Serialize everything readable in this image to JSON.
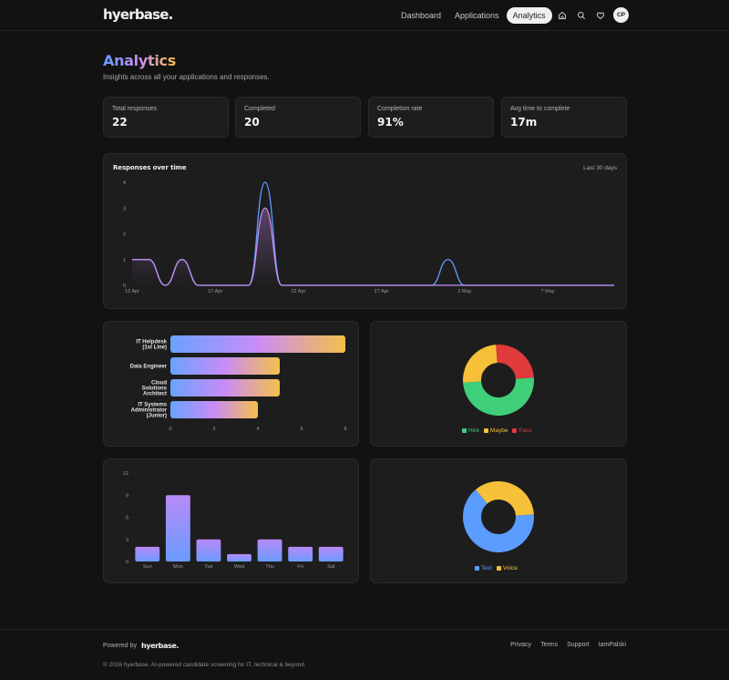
{
  "brand": {
    "logo": "hyerbase."
  },
  "nav": {
    "links": [
      "Dashboard",
      "Applications",
      "Analytics"
    ],
    "active": "Analytics",
    "icons": [
      "home-icon",
      "search-icon",
      "heart-icon"
    ],
    "avatar_initials": "CP"
  },
  "header": {
    "title": "Analytics",
    "subtitle": "Insights across all your applications and responses."
  },
  "stats": [
    {
      "label": "Total responses",
      "value": "22"
    },
    {
      "label": "Completed",
      "value": "20"
    },
    {
      "label": "Completion rate",
      "value": "91%"
    },
    {
      "label": "Avg time to complete",
      "value": "17m"
    }
  ],
  "colors": {
    "accent_blue": "#5f9dff",
    "accent_purple": "#c98cf7",
    "accent_yellow": "#f5c04a",
    "hire": "#3fcf7a",
    "maybe": "#f6c038",
    "pass": "#e03a3a",
    "text": "#5b9cff",
    "voice": "#f6c038"
  },
  "chart_data": [
    {
      "type": "line",
      "title": "Responses over time",
      "range_label": "Last 30 days",
      "x_tick_labels": [
        "12 Apr",
        "17 Apr",
        "22 Apr",
        "27 Apr",
        "2 May",
        "7 May"
      ],
      "x": [
        "12 Apr",
        "13 Apr",
        "14 Apr",
        "15 Apr",
        "16 Apr",
        "17 Apr",
        "18 Apr",
        "19 Apr",
        "20 Apr",
        "21 Apr",
        "22 Apr",
        "23 Apr",
        "24 Apr",
        "25 Apr",
        "26 Apr",
        "27 Apr",
        "28 Apr",
        "29 Apr",
        "30 Apr",
        "1 May",
        "2 May",
        "3 May",
        "4 May",
        "5 May",
        "6 May",
        "7 May",
        "8 May",
        "9 May",
        "10 May",
        "11 May"
      ],
      "ylim": [
        0,
        4
      ],
      "y_ticks": [
        0,
        1,
        2,
        3,
        4
      ],
      "series": [
        {
          "color": "#5f9dff",
          "values": [
            1,
            1,
            0,
            1,
            0,
            0,
            0,
            0,
            4,
            0,
            0,
            0,
            0,
            0,
            0,
            0,
            0,
            0,
            0,
            1,
            0,
            0,
            0,
            0,
            0,
            0,
            0,
            0,
            0,
            0
          ]
        },
        {
          "color": "#c98cf7",
          "values": [
            1,
            1,
            0,
            1,
            0,
            0,
            0,
            0,
            3,
            0,
            0,
            0,
            0,
            0,
            0,
            0,
            0,
            0,
            0,
            0,
            0,
            0,
            0,
            0,
            0,
            0,
            0,
            0,
            0,
            0
          ]
        }
      ],
      "grid": true
    },
    {
      "type": "bar",
      "orientation": "horizontal",
      "categories": [
        "IT Helpdesk (1st Line)",
        "Data Engineer",
        "Cloud Solutions Architect",
        "IT Systems Administrator (Junior)"
      ],
      "values": [
        8,
        5,
        5,
        4
      ],
      "xlim": [
        0,
        8
      ],
      "x_ticks": [
        0,
        2,
        4,
        6,
        8
      ]
    },
    {
      "type": "pie",
      "variant": "donut",
      "labels": [
        "Hire",
        "Maybe",
        "Pass"
      ],
      "values": [
        10,
        5,
        5
      ]
    },
    {
      "type": "bar",
      "categories": [
        "Sun",
        "Mon",
        "Tue",
        "Wed",
        "Thu",
        "Fri",
        "Sat"
      ],
      "values": [
        2,
        9,
        3,
        1,
        3,
        2,
        2
      ],
      "ylim": [
        0,
        12
      ],
      "y_ticks": [
        0,
        3,
        6,
        9,
        12
      ],
      "grid": true
    },
    {
      "type": "pie",
      "variant": "donut",
      "labels": [
        "Text",
        "Voice"
      ],
      "values": [
        13,
        7
      ]
    }
  ],
  "footer": {
    "powered_by": "Powered by",
    "logo": "hyerbase.",
    "links": [
      "Privacy",
      "Terms",
      "Support",
      "IamPalski"
    ],
    "copyright": "© 2026 hyerbase. AI-powered candidate screening for IT, technical & beyond."
  }
}
